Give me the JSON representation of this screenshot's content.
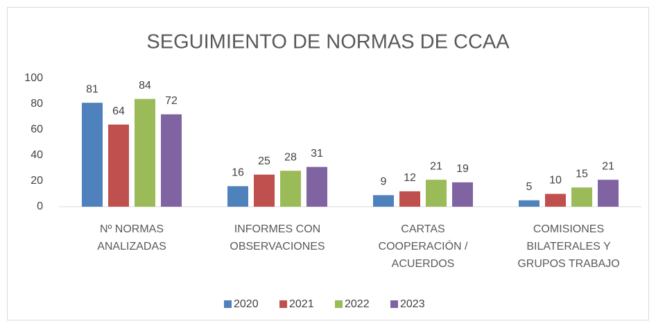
{
  "chart_data": {
    "type": "bar",
    "title": "SEGUIMIENTO DE NORMAS DE CCAA",
    "categories": [
      "Nº NORMAS\nANALIZADAS",
      "INFORMES CON\nOBSERVACIONES",
      "CARTAS\nCOOPERACIÓN /\nACUERDOS",
      "COMISIONES\nBILATERALES Y\nGRUPOS TRABAJO"
    ],
    "series": [
      {
        "name": "2020",
        "color": "#4f81bd",
        "values": [
          81,
          16,
          9,
          5
        ]
      },
      {
        "name": "2021",
        "color": "#c0504d",
        "values": [
          64,
          25,
          12,
          10
        ]
      },
      {
        "name": "2022",
        "color": "#9bbb59",
        "values": [
          84,
          28,
          21,
          15
        ]
      },
      {
        "name": "2023",
        "color": "#8064a2",
        "values": [
          72,
          31,
          19,
          21
        ]
      }
    ],
    "ylim": [
      0,
      100
    ],
    "yticks": [
      0,
      20,
      40,
      60,
      80,
      100
    ],
    "grid": false,
    "legend": "bottom"
  }
}
